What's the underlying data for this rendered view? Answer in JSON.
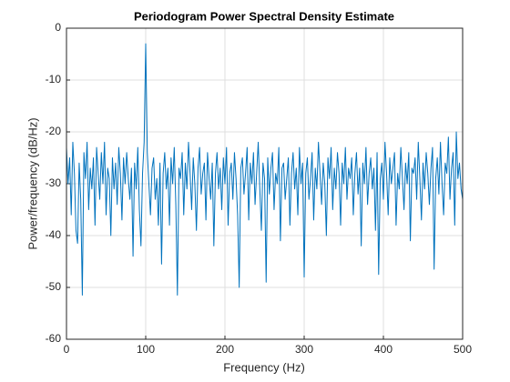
{
  "chart_data": {
    "type": "line",
    "title": "Periodogram Power Spectral Density Estimate",
    "xlabel": "Frequency (Hz)",
    "ylabel": "Power/frequency (dB/Hz)",
    "xlim": [
      0,
      500
    ],
    "ylim": [
      -60,
      0
    ],
    "xticks": [
      0,
      100,
      200,
      300,
      400,
      500
    ],
    "yticks": [
      -60,
      -50,
      -40,
      -30,
      -20,
      -10,
      0
    ],
    "grid": true,
    "x": [
      0,
      2,
      4,
      6,
      8,
      10,
      12,
      14,
      16,
      18,
      20,
      22,
      24,
      26,
      28,
      30,
      32,
      34,
      36,
      38,
      40,
      42,
      44,
      46,
      48,
      50,
      52,
      54,
      56,
      58,
      60,
      62,
      64,
      66,
      68,
      70,
      72,
      74,
      76,
      78,
      80,
      82,
      84,
      86,
      88,
      90,
      92,
      94,
      96,
      98,
      100,
      102,
      104,
      106,
      108,
      110,
      112,
      114,
      116,
      118,
      120,
      122,
      124,
      126,
      128,
      130,
      132,
      134,
      136,
      138,
      140,
      142,
      144,
      146,
      148,
      150,
      152,
      154,
      156,
      158,
      160,
      162,
      164,
      166,
      168,
      170,
      172,
      174,
      176,
      178,
      180,
      182,
      184,
      186,
      188,
      190,
      192,
      194,
      196,
      198,
      200,
      202,
      204,
      206,
      208,
      210,
      212,
      214,
      216,
      218,
      220,
      222,
      224,
      226,
      228,
      230,
      232,
      234,
      236,
      238,
      240,
      242,
      244,
      246,
      248,
      250,
      252,
      254,
      256,
      258,
      260,
      262,
      264,
      266,
      268,
      270,
      272,
      274,
      276,
      278,
      280,
      282,
      284,
      286,
      288,
      290,
      292,
      294,
      296,
      298,
      300,
      302,
      304,
      306,
      308,
      310,
      312,
      314,
      316,
      318,
      320,
      322,
      324,
      326,
      328,
      330,
      332,
      334,
      336,
      338,
      340,
      342,
      344,
      346,
      348,
      350,
      352,
      354,
      356,
      358,
      360,
      362,
      364,
      366,
      368,
      370,
      372,
      374,
      376,
      378,
      380,
      382,
      384,
      386,
      388,
      390,
      392,
      394,
      396,
      398,
      400,
      402,
      404,
      406,
      408,
      410,
      412,
      414,
      416,
      418,
      420,
      422,
      424,
      426,
      428,
      430,
      432,
      434,
      436,
      438,
      440,
      442,
      444,
      446,
      448,
      450,
      452,
      454,
      456,
      458,
      460,
      462,
      464,
      466,
      468,
      470,
      472,
      474,
      476,
      478,
      480,
      482,
      484,
      486,
      488,
      490,
      492,
      494,
      496,
      498,
      500
    ],
    "series": [
      {
        "color": "#0072bd",
        "values": [
          -23,
          -30,
          -25,
          -36,
          -22,
          -28,
          -39,
          -41.5,
          -26,
          -33,
          -51.5,
          -24,
          -29,
          -22,
          -35,
          -27,
          -31,
          -25,
          -38,
          -23,
          -28,
          -33,
          -24,
          -30,
          -22,
          -36,
          -27,
          -29,
          -40,
          -25,
          -31,
          -26,
          -34,
          -23,
          -28,
          -37,
          -25,
          -30,
          -24,
          -29,
          -33,
          -27,
          -44,
          -26,
          -31,
          -23,
          -35,
          -42,
          -28,
          -22,
          -3,
          -24,
          -30,
          -36,
          -27,
          -25,
          -33,
          -29,
          -38,
          -26,
          -45.5,
          -28,
          -24,
          -31,
          -27,
          -38,
          -25,
          -30,
          -23,
          -34,
          -51.5,
          -27,
          -29,
          -24,
          -36,
          -26,
          -31,
          -22,
          -28,
          -35,
          -25,
          -30,
          -39,
          -27,
          -23,
          -32,
          -28,
          -26,
          -37,
          -24,
          -29,
          -33,
          -26,
          -42,
          -28,
          -24,
          -31,
          -27,
          -35,
          -25,
          -30,
          -23,
          -38,
          -28,
          -26,
          -33,
          -24,
          -29,
          -36,
          -50,
          -27,
          -25,
          -32,
          -28,
          -23,
          -37,
          -26,
          -30,
          -24,
          -34,
          -28,
          -22,
          -31,
          -39,
          -26,
          -29,
          -49,
          -25,
          -32,
          -27,
          -24,
          -35,
          -28,
          -30,
          -23,
          -41,
          -27,
          -26,
          -33,
          -29,
          -25,
          -38,
          -28,
          -24,
          -31,
          -27,
          -36,
          -23,
          -30,
          -26,
          -48,
          -28,
          -25,
          -33,
          -29,
          -24,
          -37,
          -27,
          -31,
          -22,
          -28,
          -34,
          -26,
          -30,
          -40,
          -25,
          -29,
          -23,
          -35,
          -27,
          -31,
          -24,
          -28,
          -38,
          -26,
          -30,
          -23,
          -33,
          -27,
          -29,
          -25,
          -36,
          -28,
          -24,
          -32,
          -27,
          -42,
          -26,
          -30,
          -23,
          -34,
          -28,
          -25,
          -31,
          -27,
          -39,
          -24,
          -47.5,
          -29,
          -26,
          -33,
          -22,
          -28,
          -36,
          -25,
          -30,
          -27,
          -24,
          -38,
          -28,
          -31,
          -23,
          -29,
          -35,
          -26,
          -30,
          -24,
          -41,
          -27,
          -28,
          -25,
          -33,
          -22,
          -29,
          -37,
          -26,
          -31,
          -24,
          -28,
          -34,
          -27,
          -23,
          -46.5,
          -29,
          -25,
          -32,
          -22,
          -30,
          -36,
          -26,
          -28,
          -21,
          -33,
          -27,
          -24,
          -38,
          -20,
          -29,
          -26,
          -31,
          -33
        ]
      }
    ]
  }
}
